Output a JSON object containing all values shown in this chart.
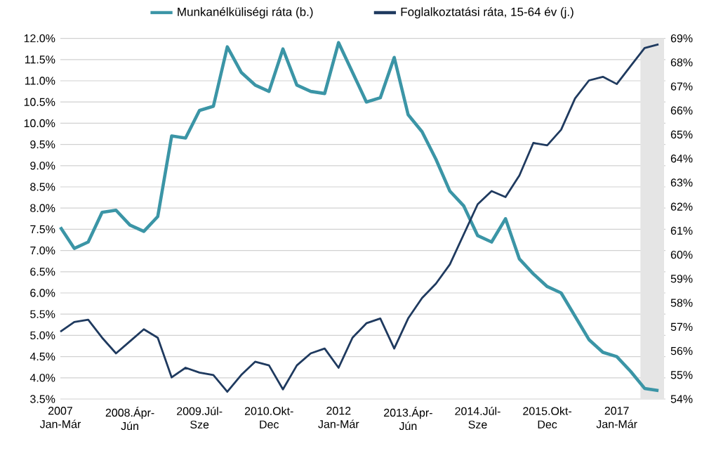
{
  "chart_data": {
    "type": "line",
    "categories": [
      "2007 Jan-Már",
      null,
      null,
      null,
      null,
      "2008.Ápr-Jún",
      null,
      null,
      null,
      null,
      "2009.Júl-Sze",
      null,
      null,
      null,
      null,
      "2010.Okt-Dec",
      null,
      null,
      null,
      null,
      "2012 Jan-Már",
      null,
      null,
      null,
      null,
      "2013.Ápr-Jún",
      null,
      null,
      null,
      null,
      "2014.Júl-Sze",
      null,
      null,
      null,
      null,
      "2015.Okt-Dec",
      null,
      null,
      null,
      null,
      "2017 Jan-Már",
      null,
      null,
      null
    ],
    "series": [
      {
        "name": "Munkanélküliségi ráta (b.)",
        "color": "#3b95a6",
        "values": [
          7.55,
          7.05,
          7.2,
          7.9,
          7.95,
          7.6,
          7.45,
          7.8,
          9.7,
          9.65,
          10.3,
          10.4,
          11.8,
          11.2,
          10.9,
          10.75,
          11.75,
          10.9,
          10.75,
          10.7,
          11.9,
          11.2,
          10.5,
          10.6,
          11.55,
          10.2,
          9.8,
          9.15,
          8.4,
          8.05,
          7.35,
          7.2,
          7.75,
          6.8,
          6.45,
          6.15,
          6.0,
          5.45,
          4.9,
          4.6,
          4.5,
          4.15,
          3.75,
          3.7
        ]
      },
      {
        "name": "Foglalkoztatási ráta, 15-64 év (j.)",
        "color": "#1f3a5f",
        "axis": "y2",
        "values": [
          56.8,
          57.2,
          57.3,
          56.55,
          55.9,
          56.4,
          56.9,
          56.55,
          54.9,
          55.3,
          55.1,
          55.0,
          54.3,
          55.0,
          55.55,
          55.4,
          54.4,
          55.4,
          55.9,
          56.1,
          55.3,
          56.55,
          57.15,
          57.35,
          56.1,
          57.35,
          58.2,
          58.8,
          59.6,
          60.85,
          62.1,
          62.65,
          62.4,
          63.3,
          64.65,
          64.55,
          65.2,
          66.5,
          67.25,
          67.4,
          67.1,
          67.85,
          68.6,
          68.75
        ]
      }
    ],
    "ylim": [
      3.5,
      12
    ],
    "yticks": [
      {
        "value": 3.5,
        "label": "3.5%"
      },
      {
        "value": 4,
        "label": "4.0%"
      },
      {
        "value": 4.5,
        "label": "4.5%"
      },
      {
        "value": 5,
        "label": "5.0%"
      },
      {
        "value": 5.5,
        "label": "5.5%"
      },
      {
        "value": 6,
        "label": "6.0%"
      },
      {
        "value": 6.5,
        "label": "6.5%"
      },
      {
        "value": 7,
        "label": "7.0%"
      },
      {
        "value": 7.5,
        "label": "7.5%"
      },
      {
        "value": 8,
        "label": "8.0%"
      },
      {
        "value": 8.5,
        "label": "8.5%"
      },
      {
        "value": 9,
        "label": "9.0%"
      },
      {
        "value": 9.5,
        "label": "9.5%"
      },
      {
        "value": 10,
        "label": "10.0%"
      },
      {
        "value": 10.5,
        "label": "10.5%"
      },
      {
        "value": 11,
        "label": "11.0%"
      },
      {
        "value": 11.5,
        "label": "11.5%"
      },
      {
        "value": 12,
        "label": "12.0%"
      }
    ],
    "y2lim": [
      54,
      69
    ],
    "y2ticks": [
      {
        "value": 54,
        "label": "54%"
      },
      {
        "value": 55,
        "label": "55%"
      },
      {
        "value": 56,
        "label": "56%"
      },
      {
        "value": 57,
        "label": "57%"
      },
      {
        "value": 58,
        "label": "58%"
      },
      {
        "value": 59,
        "label": "59%"
      },
      {
        "value": 60,
        "label": "60%"
      },
      {
        "value": 61,
        "label": "61%"
      },
      {
        "value": 62,
        "label": "62%"
      },
      {
        "value": 63,
        "label": "63%"
      },
      {
        "value": 64,
        "label": "64%"
      },
      {
        "value": 65,
        "label": "65%"
      },
      {
        "value": 66,
        "label": "66%"
      },
      {
        "value": 67,
        "label": "67%"
      },
      {
        "value": 68,
        "label": "68%"
      },
      {
        "value": 69,
        "label": "69%"
      }
    ],
    "grid": "y",
    "legend": "top"
  }
}
